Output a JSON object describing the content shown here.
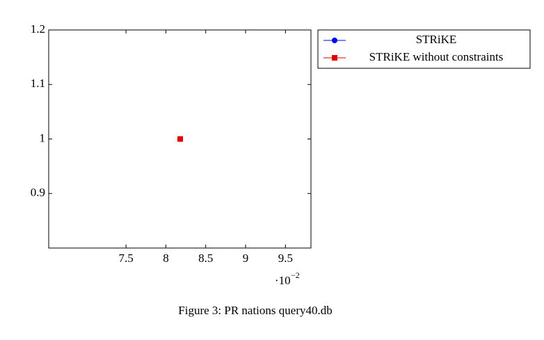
{
  "chart_data": {
    "type": "scatter",
    "caption": "Figure 3: PR nations query40.db",
    "xlim": [
      6.53,
      9.82
    ],
    "xticks": [
      7.5,
      8,
      8.5,
      9,
      9.5
    ],
    "x_scale": {
      "base": "·10",
      "exponent": "−2"
    },
    "ylim": [
      0.8,
      1.2
    ],
    "yticks": [
      0.9,
      1,
      1.1,
      1.2
    ],
    "legend_position": "outer-north-east",
    "series": [
      {
        "name": "STRiKE",
        "color": "#0000ff",
        "marker": "circle",
        "x": [
          8.18
        ],
        "values": [
          1
        ]
      },
      {
        "name": "STRiKE without constraints",
        "color": "#e00000",
        "marker": "square",
        "x": [
          8.18
        ],
        "values": [
          1
        ]
      }
    ]
  }
}
